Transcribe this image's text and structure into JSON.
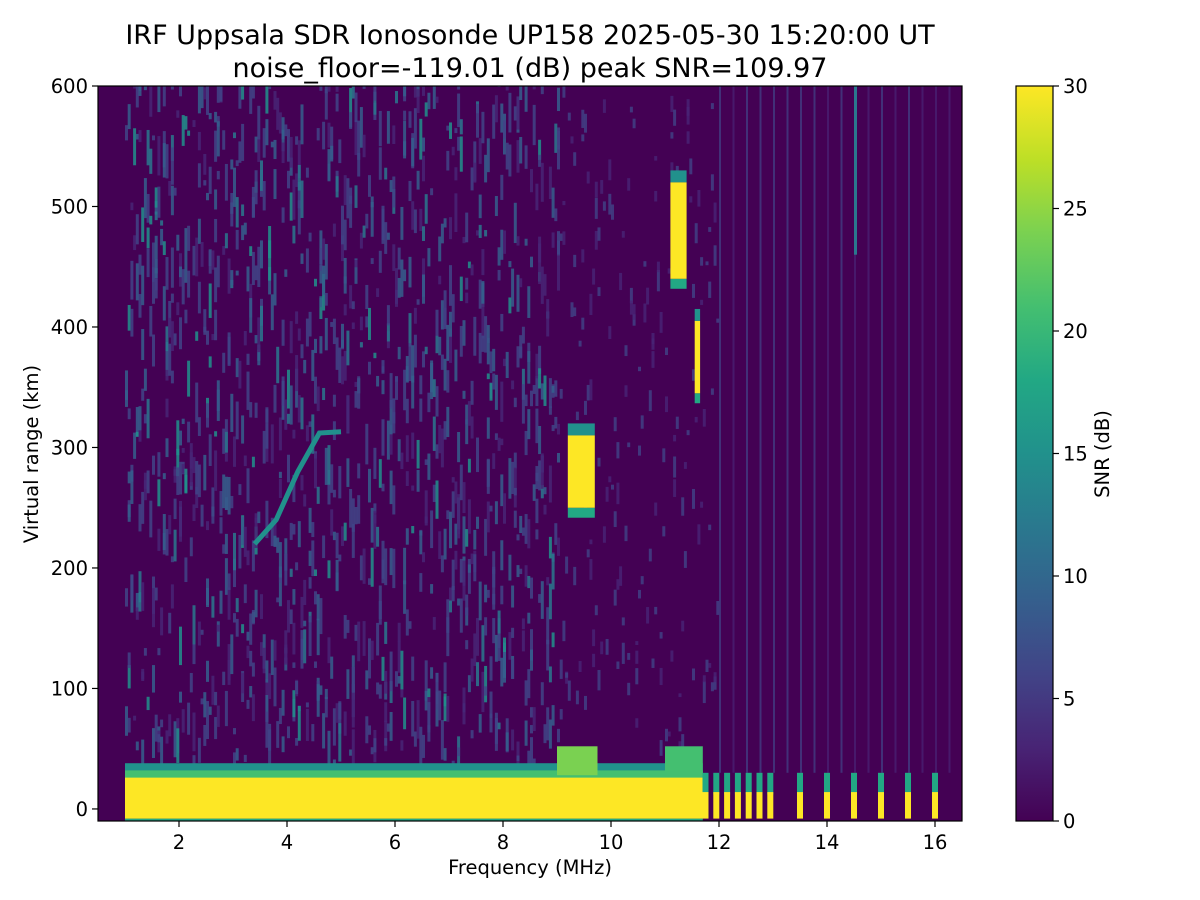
{
  "chart_data": {
    "type": "heatmap",
    "title": "IRF Uppsala SDR Ionosonde UP158 2025-05-30 15:20:00  UT",
    "subtitle": "noise_floor=-119.01 (dB) peak SNR=109.97",
    "xlabel": "Frequency (MHz)",
    "ylabel": "Virtual range (km)",
    "colorbar_label": "SNR (dB)",
    "colormap": "viridis",
    "xlim": [
      0.5,
      16.5
    ],
    "ylim": [
      -10,
      600
    ],
    "clim": [
      0,
      30
    ],
    "x_ticks": [
      2,
      4,
      6,
      8,
      10,
      12,
      14,
      16
    ],
    "y_ticks": [
      0,
      100,
      200,
      300,
      400,
      500,
      600
    ],
    "colorbar_ticks": [
      0,
      5,
      10,
      15,
      20,
      25,
      30
    ],
    "data_frequency_range": [
      1.0,
      16.3
    ],
    "features": [
      {
        "name": "ground clutter band",
        "x": [
          1.0,
          11.7
        ],
        "y": [
          -8,
          28
        ],
        "snr": 30
      },
      {
        "name": "strong echo at 9.5 MHz",
        "x": [
          9.2,
          9.7
        ],
        "y": [
          250,
          310
        ],
        "snr": 30
      },
      {
        "name": "strong echo at 11.2 MHz",
        "x": [
          11.1,
          11.4
        ],
        "y": [
          440,
          520
        ],
        "snr": 30
      },
      {
        "name": "echo at 11.6 MHz",
        "x": [
          11.55,
          11.65
        ],
        "y": [
          345,
          405
        ],
        "snr": 30
      },
      {
        "name": "F-layer trace",
        "points": [
          [
            3.4,
            220
          ],
          [
            3.8,
            240
          ],
          [
            4.2,
            280
          ],
          [
            4.6,
            312
          ],
          [
            5.0,
            313
          ]
        ],
        "snr": 14
      }
    ],
    "low_range_pulses_mhz": [
      11.75,
      11.95,
      12.15,
      12.35,
      12.55,
      12.75,
      12.95,
      13.5,
      14.0,
      14.5,
      15.0,
      15.5,
      16.0
    ]
  }
}
